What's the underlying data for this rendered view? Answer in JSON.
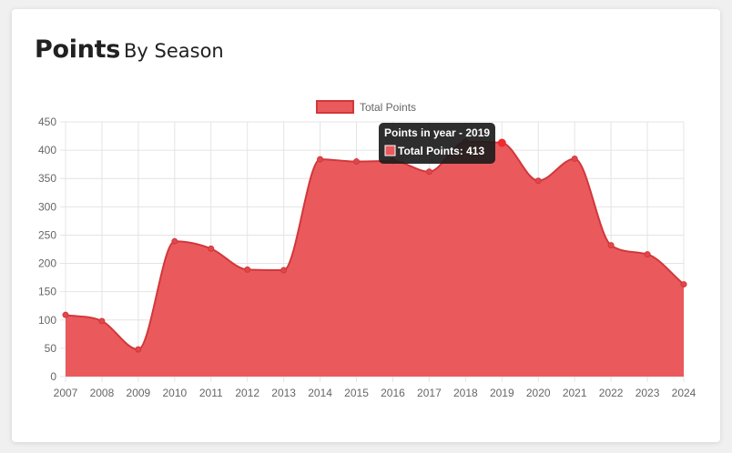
{
  "header": {
    "title": "Points",
    "subtitle": "By Season"
  },
  "colors": {
    "fill": "#ea5a5c",
    "line": "#d2373a",
    "point": "#e0474a",
    "grid": "#e4e4e4",
    "tick": "#666666",
    "tooltip_bg": "#1c1c1c"
  },
  "chart_data": {
    "type": "area",
    "legend": {
      "position": "top",
      "label": "Total Points"
    },
    "categories": [
      "2007",
      "2008",
      "2009",
      "2010",
      "2011",
      "2012",
      "2013",
      "2014",
      "2015",
      "2016",
      "2017",
      "2018",
      "2019",
      "2020",
      "2021",
      "2022",
      "2023",
      "2024"
    ],
    "series": [
      {
        "name": "Total Points",
        "values": [
          109,
          98,
          48,
          239,
          226,
          189,
          188,
          384,
          380,
          381,
          362,
          415,
          413,
          346,
          385,
          232,
          216,
          163
        ]
      }
    ],
    "ylim": [
      0,
      450
    ],
    "yticks": [
      0,
      50,
      100,
      150,
      200,
      250,
      300,
      350,
      400,
      450
    ],
    "grid": true,
    "tooltip": {
      "title": "Points in year - 2019",
      "label": "Total Points: 413",
      "category": "2019"
    }
  }
}
